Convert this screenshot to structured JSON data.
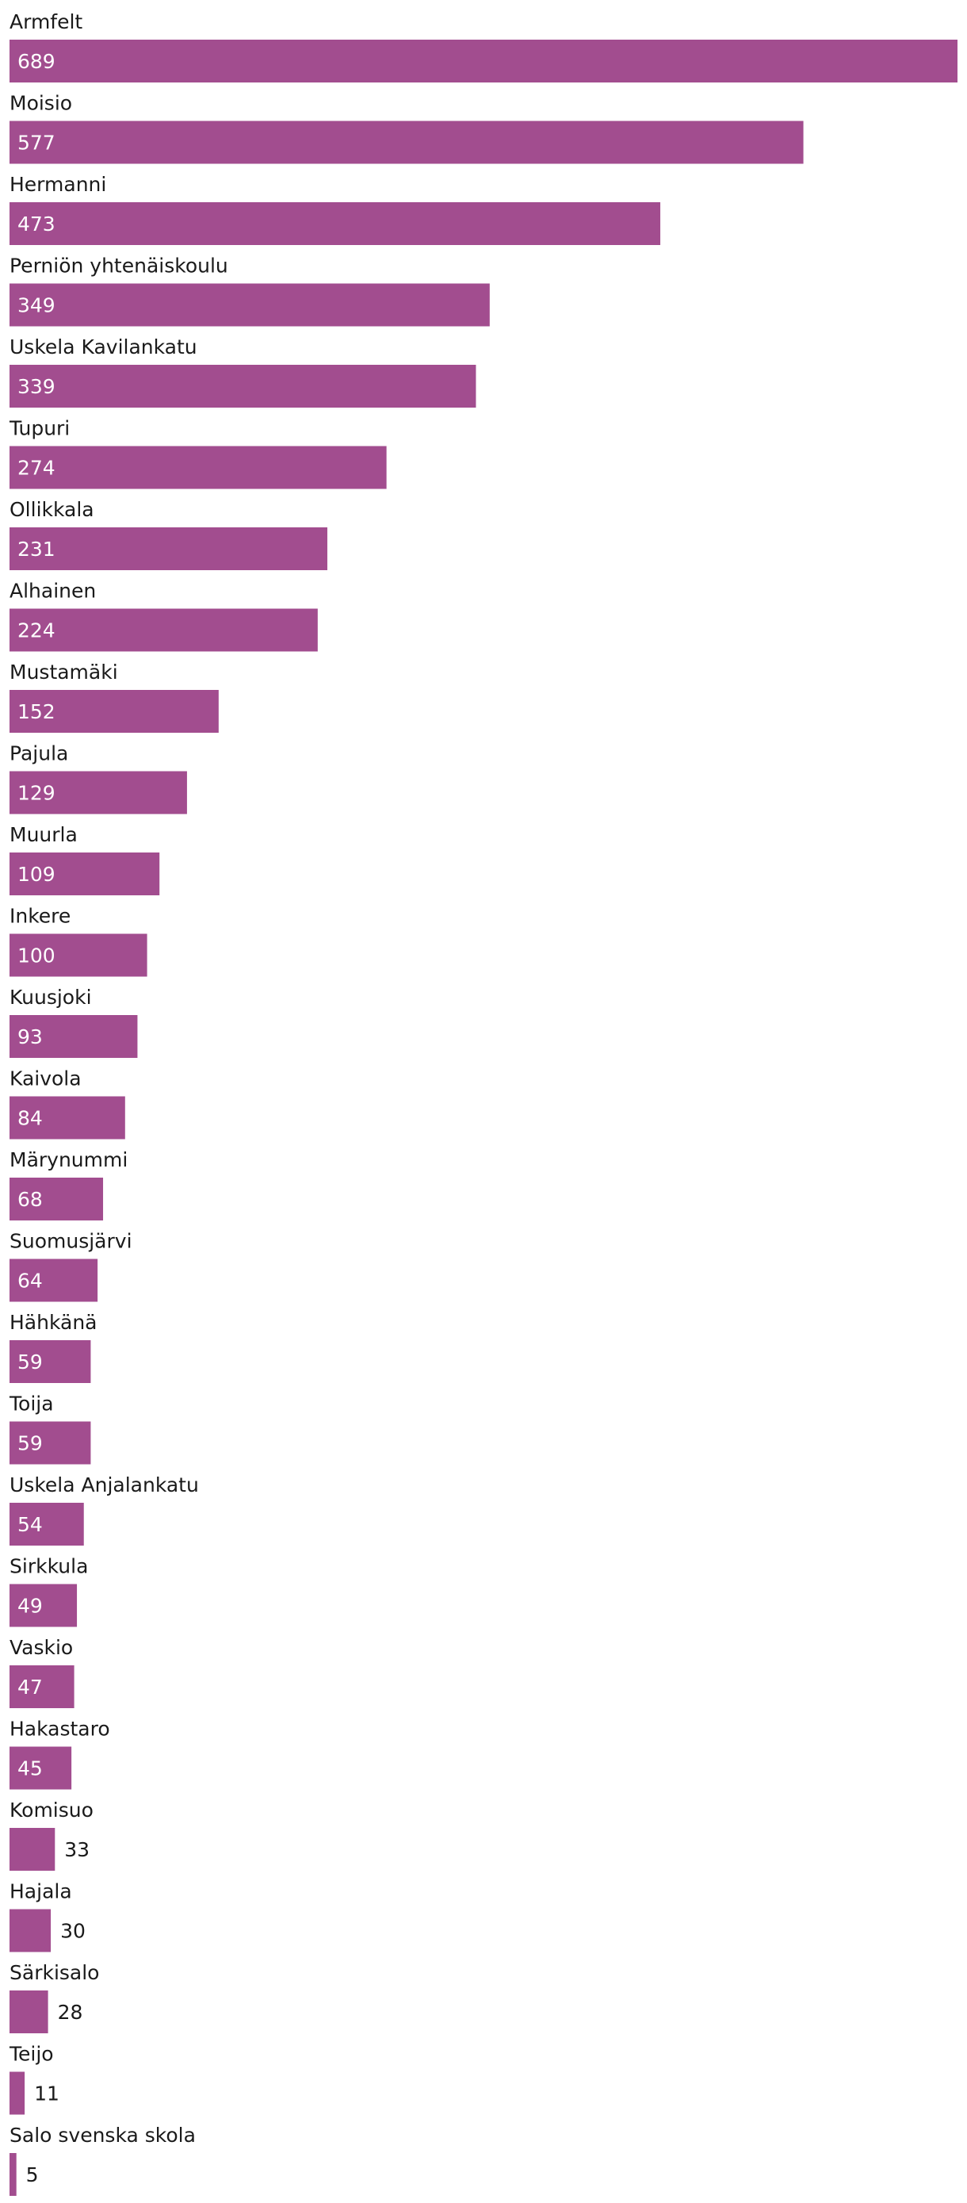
{
  "chart_data": {
    "type": "bar",
    "orientation": "horizontal",
    "categories": [
      "Armfelt",
      "Moisio",
      "Hermanni",
      "Perniön yhtenäiskoulu",
      "Uskela Kavilankatu",
      "Tupuri",
      "Ollikkala",
      "Alhainen",
      "Mustamäki",
      "Pajula",
      "Muurla",
      "Inkere",
      "Kuusjoki",
      "Kaivola",
      "Märynummi",
      "Suomusjärvi",
      "Hähkänä",
      "Toija",
      "Uskela Anjalankatu",
      "Sirkkula",
      "Vaskio",
      "Hakastaro",
      "Komisuo",
      "Hajala",
      "Särkisalo",
      "Teijo",
      "Salo svenska skola"
    ],
    "values": [
      689,
      577,
      473,
      349,
      339,
      274,
      231,
      224,
      152,
      129,
      109,
      100,
      93,
      84,
      68,
      64,
      59,
      59,
      54,
      49,
      47,
      45,
      33,
      30,
      28,
      11,
      5
    ],
    "title": "",
    "xlabel": "",
    "ylabel": "",
    "xlim": [
      0,
      689
    ],
    "grid": false,
    "legend": "none",
    "bar_color": "#a24d8f",
    "label_inside_color": "#ffffff",
    "label_outside_color": "#1a1a1a"
  }
}
